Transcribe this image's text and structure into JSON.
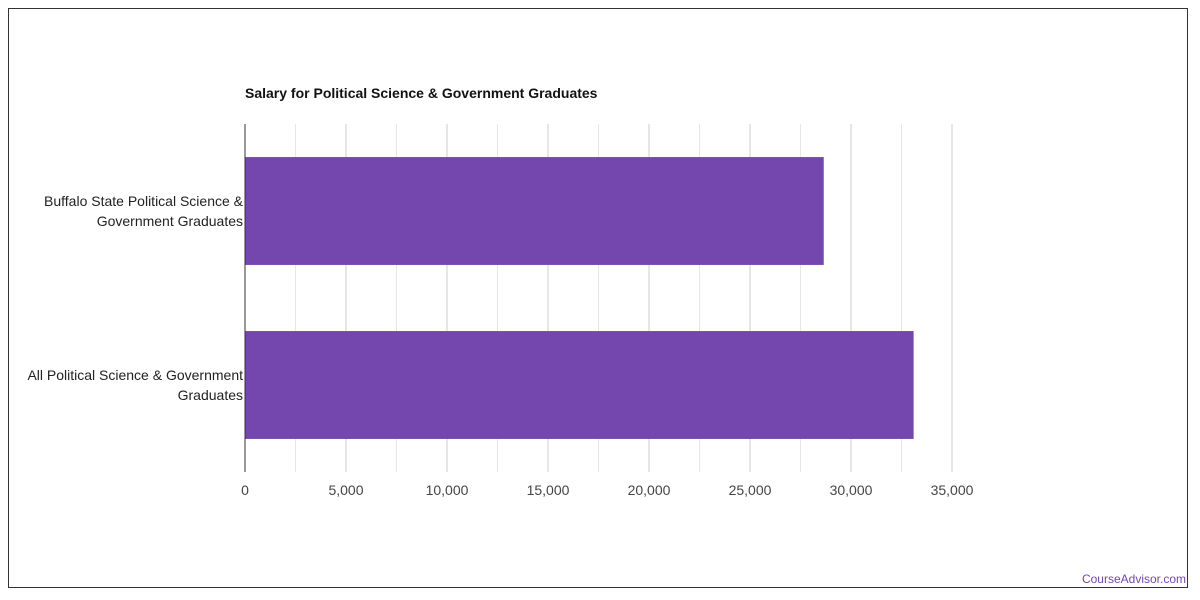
{
  "chart_data": {
    "type": "bar",
    "orientation": "horizontal",
    "title": "Salary for Political Science & Government Graduates",
    "categories": [
      "Buffalo State Political Science & Government Graduates",
      "All Political Science & Government Graduates"
    ],
    "category_lines": [
      [
        "Buffalo State Political Science &",
        "Government Graduates"
      ],
      [
        "All Political Science & Government",
        "Graduates"
      ]
    ],
    "values": [
      28650,
      33100
    ],
    "xlim": [
      0,
      35000
    ],
    "x_ticks": [
      0,
      5000,
      10000,
      15000,
      20000,
      25000,
      30000,
      35000
    ],
    "x_tick_labels": [
      "0",
      "5,000",
      "10,000",
      "15,000",
      "20,000",
      "25,000",
      "30,000",
      "35,000"
    ],
    "grid": true,
    "xlabel": "",
    "ylabel": "",
    "colors": {
      "bar": "#7347ad",
      "grid": "#dddddd",
      "axis": "#333333"
    }
  },
  "watermark": "CourseAdvisor.com"
}
